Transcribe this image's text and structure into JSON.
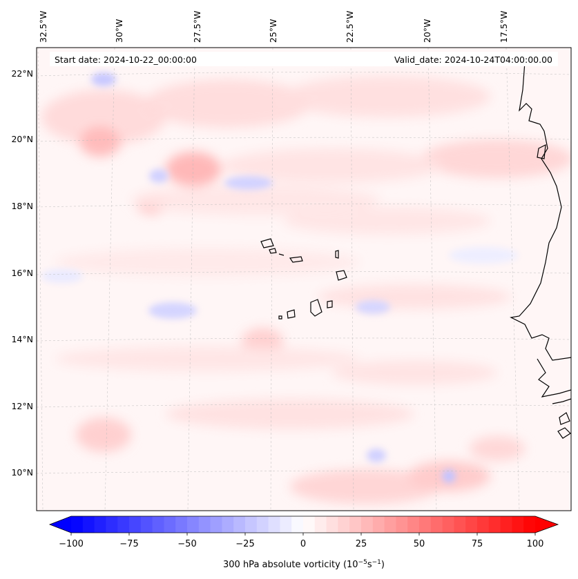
{
  "map": {
    "start_date_label": "Start date: 2024-10-22_00:00:00",
    "valid_date_label": "Valid_date: 2024-10-24T04:00:00.00",
    "lon_labels": [
      "32.5°W",
      "30°W",
      "27.5°W",
      "25°W",
      "22.5°W",
      "20°W",
      "17.5°W"
    ],
    "lat_labels": [
      "22°N",
      "20°N",
      "18°N",
      "16°N",
      "14°N",
      "12°N",
      "10°N"
    ]
  },
  "colorbar": {
    "label": "300 hPa absolute vorticity (10",
    "label_exp": "−5",
    "label_unit": "s",
    "label_unit_exp": "−1",
    "label_close": ")",
    "ticks": [
      "−100",
      "−75",
      "−50",
      "−25",
      "0",
      "25",
      "50",
      "75",
      "100"
    ],
    "vmin": -100,
    "vmax": 100,
    "cmap": "bwr",
    "extend": "both",
    "colors": {
      "min": "#0000ff",
      "mid": "#ffffff",
      "max": "#ff0000"
    }
  }
}
